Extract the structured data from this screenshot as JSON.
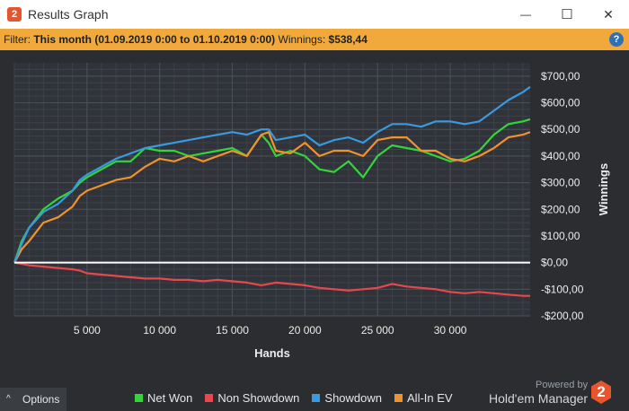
{
  "window": {
    "title": "Results Graph",
    "app_icon_text": "2",
    "controls": {
      "minimize": "—",
      "maximize": "☐",
      "close": "✕"
    }
  },
  "filter": {
    "label": "Filter:",
    "value": "This month (01.09.2019 0:00 to 01.10.2019 0:00)",
    "winnings_label": "Winnings:",
    "winnings_value": "$538,44",
    "help": "?"
  },
  "options": {
    "chevron": "^",
    "label": "Options"
  },
  "legend": [
    {
      "name": "Net Won",
      "color": "#33d63a"
    },
    {
      "name": "Non Showdown",
      "color": "#e8474d"
    },
    {
      "name": "Showdown",
      "color": "#3a9ae0"
    },
    {
      "name": "All-In EV",
      "color": "#f2922e"
    }
  ],
  "branding": {
    "powered": "Powered by",
    "name": "Hold'em Manager",
    "logo": "2"
  },
  "chart_data": {
    "type": "line",
    "xlabel": "Hands",
    "ylabel": "Winnings",
    "xlim": [
      0,
      35500
    ],
    "ylim": [
      -200,
      750
    ],
    "xticks": [
      5000,
      10000,
      15000,
      20000,
      25000,
      30000
    ],
    "xtick_labels": [
      "5 000",
      "10 000",
      "15 000",
      "20 000",
      "25 000",
      "30 000"
    ],
    "yticks": [
      700,
      600,
      500,
      400,
      300,
      200,
      100,
      0,
      -100,
      -200
    ],
    "ytick_labels": [
      "$700,00",
      "$600,00",
      "$500,00",
      "$400,00",
      "$300,00",
      "$200,00",
      "$100,00",
      "$0,00",
      "-$100,00",
      "-$200,00"
    ],
    "grid": true,
    "zero_line": true,
    "x": [
      0,
      500,
      1000,
      2000,
      3000,
      4000,
      4500,
      5000,
      6000,
      7000,
      8000,
      9000,
      10000,
      11000,
      12000,
      13000,
      14000,
      15000,
      16000,
      17000,
      17500,
      18000,
      19000,
      20000,
      21000,
      22000,
      23000,
      24000,
      25000,
      26000,
      27000,
      28000,
      29000,
      30000,
      31000,
      32000,
      33000,
      34000,
      35000,
      35500
    ],
    "series": [
      {
        "name": "Net Won",
        "color": "#33d63a",
        "values": [
          0,
          80,
          130,
          200,
          240,
          270,
          300,
          320,
          350,
          380,
          380,
          430,
          420,
          420,
          400,
          410,
          420,
          430,
          400,
          480,
          450,
          400,
          420,
          400,
          350,
          340,
          380,
          320,
          400,
          440,
          430,
          420,
          400,
          380,
          390,
          420,
          480,
          520,
          530,
          538
        ]
      },
      {
        "name": "Non Showdown",
        "color": "#e8474d",
        "values": [
          0,
          -5,
          -10,
          -15,
          -20,
          -25,
          -30,
          -40,
          -45,
          -50,
          -55,
          -60,
          -60,
          -65,
          -65,
          -70,
          -65,
          -70,
          -75,
          -85,
          -80,
          -75,
          -80,
          -85,
          -95,
          -100,
          -105,
          -100,
          -95,
          -80,
          -90,
          -95,
          -100,
          -110,
          -115,
          -110,
          -115,
          -120,
          -125,
          -125
        ]
      },
      {
        "name": "Showdown",
        "color": "#3a9ae0",
        "values": [
          0,
          70,
          130,
          190,
          220,
          270,
          310,
          330,
          360,
          390,
          410,
          430,
          440,
          450,
          460,
          470,
          480,
          490,
          480,
          500,
          500,
          460,
          470,
          480,
          440,
          460,
          470,
          450,
          490,
          520,
          520,
          510,
          530,
          530,
          520,
          530,
          570,
          610,
          640,
          660
        ]
      },
      {
        "name": "All-In EV",
        "color": "#f2922e",
        "values": [
          0,
          50,
          80,
          150,
          170,
          210,
          250,
          270,
          290,
          310,
          320,
          360,
          390,
          380,
          400,
          380,
          400,
          420,
          400,
          480,
          490,
          420,
          410,
          450,
          400,
          420,
          420,
          400,
          460,
          470,
          470,
          420,
          420,
          390,
          380,
          400,
          430,
          470,
          480,
          490
        ]
      }
    ]
  }
}
